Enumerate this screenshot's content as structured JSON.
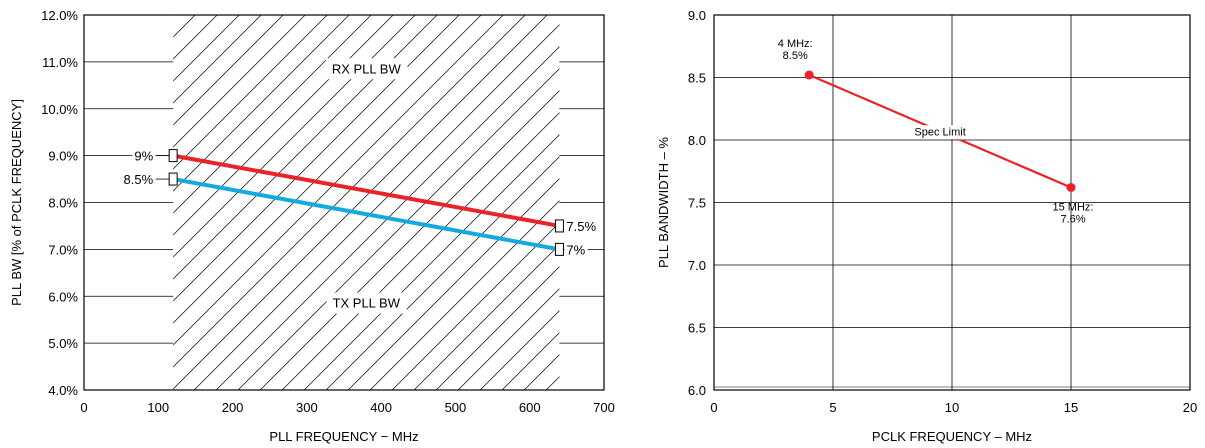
{
  "chart_data": [
    {
      "type": "line",
      "title": "",
      "xlabel": "PLL  FREQUENCY − MHz",
      "ylabel": "PLL BW [% of PCLK FREQUENCY]",
      "xlim": [
        0,
        700
      ],
      "ylim": [
        4.0,
        12.0
      ],
      "x_ticks": [
        0,
        100,
        200,
        300,
        400,
        500,
        600,
        700
      ],
      "x_tick_labels": [
        "0",
        "100",
        "200",
        "300",
        "400",
        "500",
        "600",
        "700"
      ],
      "y_ticks": [
        4,
        5,
        6,
        7,
        8,
        9,
        10,
        11,
        12
      ],
      "y_tick_labels": [
        "4.0%",
        "5.0%",
        "6.0%",
        "7.0%",
        "8.0%",
        "9.0%",
        "10.0%",
        "11.0%",
        "12.0%"
      ],
      "grid": "horizontal",
      "hatched_region_x": [
        120,
        640
      ],
      "series": [
        {
          "values": [
            {
              "x": 120,
              "y": 9.0
            },
            {
              "x": 640,
              "y": 7.5
            }
          ],
          "color": "#e8232a",
          "start_label": "9%",
          "end_label": "7.5%"
        },
        {
          "values": [
            {
              "x": 120,
              "y": 8.5
            },
            {
              "x": 640,
              "y": 7.0
            }
          ],
          "color": "#15a9e1",
          "start_label": "8.5%",
          "end_label": "7%"
        }
      ],
      "annotations": [
        "RX PLL BW",
        "TX PLL BW"
      ]
    },
    {
      "type": "line",
      "title": "",
      "xlabel": "PCLK FREQUENCY – MHz",
      "ylabel": "PLL BANDWIDTH – %",
      "xlim": [
        0,
        20
      ],
      "ylim": [
        6.0,
        9.0
      ],
      "x_ticks": [
        0,
        5,
        10,
        15,
        20
      ],
      "x_tick_labels": [
        "0",
        "5",
        "10",
        "15",
        "20"
      ],
      "y_ticks": [
        6.0,
        6.5,
        7.0,
        7.5,
        8.0,
        8.5,
        9.0
      ],
      "y_tick_labels": [
        "6.0",
        "6.5",
        "7.0",
        "7.5",
        "8.0",
        "8.5",
        "9.0"
      ],
      "grid": "both",
      "series": [
        {
          "values": [
            {
              "x": 4,
              "y": 8.52
            },
            {
              "x": 15,
              "y": 7.62
            }
          ],
          "color": "#e8232a"
        }
      ],
      "point_labels": [
        {
          "line1": "4 MHz:",
          "line2": "8.5%"
        },
        {
          "line1": "15 MHz:",
          "line2": "7.6%"
        }
      ],
      "line_label": "Spec Limit"
    }
  ]
}
